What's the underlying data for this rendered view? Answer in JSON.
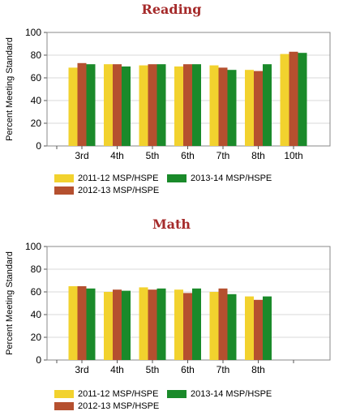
{
  "colors": {
    "title": "#a52a2a",
    "series": [
      "#f2d22e",
      "#b5502f",
      "#1a8a2a"
    ]
  },
  "chart_data": [
    {
      "type": "bar",
      "title": "Reading",
      "ylabel": "Percent Meeting Standard",
      "xlabel": "",
      "ylim": [
        0,
        100
      ],
      "yticks": [
        0,
        20,
        40,
        60,
        80,
        100
      ],
      "grid": true,
      "legend_position": "bottom",
      "categories": [
        "3rd",
        "4th",
        "5th",
        "6th",
        "7th",
        "8th",
        "10th"
      ],
      "series": [
        {
          "name": "2011-12 MSP/HSPE",
          "values": [
            69,
            72,
            71,
            70,
            71,
            67,
            81
          ]
        },
        {
          "name": "2012-13 MSP/HSPE",
          "values": [
            73,
            72,
            72,
            72,
            69,
            66,
            83
          ]
        },
        {
          "name": "2013-14 MSP/HSPE",
          "values": [
            72,
            70,
            72,
            72,
            67,
            72,
            82
          ]
        }
      ]
    },
    {
      "type": "bar",
      "title": "Math",
      "ylabel": "Percent Meeting Standard",
      "xlabel": "",
      "ylim": [
        0,
        100
      ],
      "yticks": [
        0,
        20,
        40,
        60,
        80,
        100
      ],
      "grid": true,
      "legend_position": "bottom",
      "categories": [
        "3rd",
        "4th",
        "5th",
        "6th",
        "7th",
        "8th",
        ""
      ],
      "series": [
        {
          "name": "2011-12 MSP/HSPE",
          "values": [
            65,
            60,
            64,
            62,
            60,
            56,
            null
          ]
        },
        {
          "name": "2012-13 MSP/HSPE",
          "values": [
            65,
            62,
            62,
            59,
            63,
            53,
            null
          ]
        },
        {
          "name": "2013-14 MSP/HSPE",
          "values": [
            63,
            61,
            63,
            63,
            58,
            56,
            null
          ]
        }
      ]
    }
  ]
}
